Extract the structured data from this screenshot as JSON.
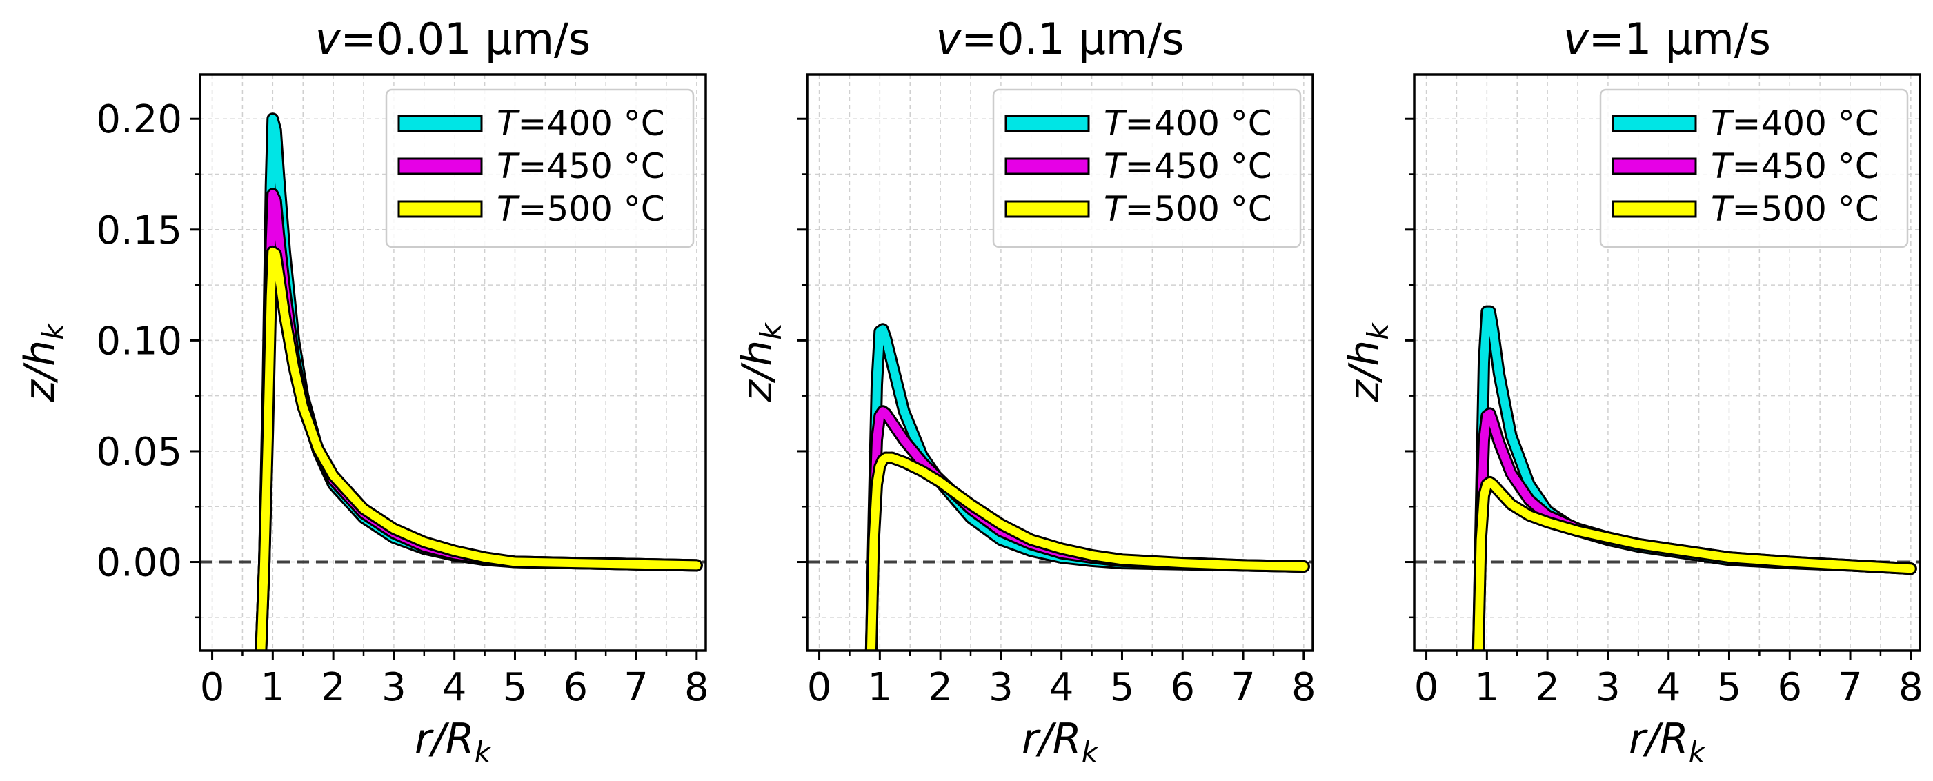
{
  "figure": {
    "xlabel": "r/R",
    "xlabel_sub": "k",
    "ylabel": "z/h",
    "ylabel_sub": "k",
    "title_prefix": "v",
    "colors": {
      "T400": "#00e5e5",
      "T450": "#e600e6",
      "T500": "#ffff00",
      "outline": "#000000",
      "zero_line": "#404040",
      "grid": "#d0d0d0"
    }
  },
  "chart_data": [
    {
      "type": "line",
      "title": "v=0.01 µm/s",
      "title_value": "=0.01 µm/s",
      "xlabel": "r/Rk",
      "ylabel": "z/hk",
      "xlim": [
        -0.2,
        8.15
      ],
      "ylim": [
        -0.04,
        0.22
      ],
      "xticks": [
        "0",
        "1",
        "2",
        "3",
        "4",
        "5",
        "6",
        "7",
        "8"
      ],
      "yticks": [
        "0.20",
        "0.15",
        "0.10",
        "0.05",
        "0.00"
      ],
      "yticks_values": [
        0.2,
        0.15,
        0.1,
        0.05,
        0.0
      ],
      "show_ytick_labels": true,
      "grid": true,
      "legend": "top-right",
      "reference_line": {
        "y": 0.0,
        "style": "dashed"
      },
      "series": [
        {
          "name": "T=400 °C",
          "legend_var": "T",
          "legend_value": "=400 °C",
          "color": "#00e5e5",
          "x": [
            0.78,
            0.86,
            0.92,
            0.97,
            1.0,
            1.05,
            1.1,
            1.2,
            1.35,
            1.5,
            1.75,
            2.0,
            2.5,
            3.0,
            3.5,
            4.0,
            4.5,
            5.0,
            6.0,
            7.0,
            8.0
          ],
          "y": [
            -0.06,
            0.0,
            0.08,
            0.17,
            0.2,
            0.195,
            0.175,
            0.14,
            0.1,
            0.075,
            0.05,
            0.035,
            0.02,
            0.011,
            0.006,
            0.003,
            0.001,
            0.0,
            -0.0005,
            -0.001,
            -0.0015
          ]
        },
        {
          "name": "T=450 °C",
          "legend_var": "T",
          "legend_value": "=450 °C",
          "color": "#e600e6",
          "x": [
            0.78,
            0.86,
            0.92,
            0.97,
            1.0,
            1.05,
            1.1,
            1.2,
            1.35,
            1.5,
            1.75,
            2.0,
            2.5,
            3.0,
            3.5,
            4.0,
            4.5,
            5.0,
            6.0,
            7.0,
            8.0
          ],
          "y": [
            -0.06,
            0.0,
            0.07,
            0.145,
            0.166,
            0.163,
            0.148,
            0.123,
            0.092,
            0.072,
            0.05,
            0.037,
            0.022,
            0.013,
            0.007,
            0.0035,
            0.0015,
            0.0,
            -0.0005,
            -0.001,
            -0.0015
          ]
        },
        {
          "name": "T=500 °C",
          "legend_var": "T",
          "legend_value": "=500 °C",
          "color": "#ffff00",
          "x": [
            0.78,
            0.86,
            0.92,
            0.97,
            1.0,
            1.05,
            1.1,
            1.2,
            1.35,
            1.5,
            1.75,
            2.0,
            2.5,
            3.0,
            3.5,
            4.0,
            4.5,
            5.0,
            6.0,
            7.0,
            8.0
          ],
          "y": [
            -0.06,
            0.0,
            0.06,
            0.12,
            0.14,
            0.139,
            0.13,
            0.111,
            0.088,
            0.07,
            0.051,
            0.039,
            0.024,
            0.015,
            0.009,
            0.005,
            0.002,
            0.0,
            -0.0005,
            -0.001,
            -0.0015
          ]
        }
      ]
    },
    {
      "type": "line",
      "title": "v=0.1 µm/s",
      "title_value": "=0.1 µm/s",
      "xlabel": "r/Rk",
      "ylabel": "z/hk",
      "xlim": [
        -0.2,
        8.15
      ],
      "ylim": [
        -0.04,
        0.22
      ],
      "xticks": [
        "0",
        "1",
        "2",
        "3",
        "4",
        "5",
        "6",
        "7",
        "8"
      ],
      "yticks": [],
      "yticks_values": [
        0.2,
        0.15,
        0.1,
        0.05,
        0.0
      ],
      "show_ytick_labels": false,
      "grid": true,
      "legend": "top-right",
      "reference_line": {
        "y": 0.0,
        "style": "dashed"
      },
      "series": [
        {
          "name": "T=400 °C",
          "legend_var": "T",
          "legend_value": "=400 °C",
          "color": "#00e5e5",
          "x": [
            0.85,
            0.9,
            0.95,
            1.0,
            1.05,
            1.1,
            1.2,
            1.4,
            1.7,
            2.0,
            2.5,
            3.0,
            3.5,
            4.0,
            4.5,
            5.0,
            6.0,
            7.0,
            8.0
          ],
          "y": [
            -0.05,
            0.02,
            0.08,
            0.104,
            0.105,
            0.101,
            0.09,
            0.068,
            0.048,
            0.036,
            0.02,
            0.01,
            0.005,
            0.002,
            0.0005,
            -0.0005,
            -0.001,
            -0.0015,
            -0.002
          ]
        },
        {
          "name": "T=450 °C",
          "legend_var": "T",
          "legend_value": "=450 °C",
          "color": "#e600e6",
          "x": [
            0.85,
            0.9,
            0.95,
            1.0,
            1.05,
            1.1,
            1.2,
            1.4,
            1.7,
            2.0,
            2.5,
            3.0,
            3.5,
            4.0,
            4.5,
            5.0,
            6.0,
            7.0,
            8.0
          ],
          "y": [
            -0.05,
            0.015,
            0.055,
            0.066,
            0.068,
            0.067,
            0.063,
            0.055,
            0.045,
            0.037,
            0.024,
            0.014,
            0.008,
            0.004,
            0.002,
            0.0005,
            -0.0005,
            -0.0015,
            -0.002
          ]
        },
        {
          "name": "T=500 °C",
          "legend_var": "T",
          "legend_value": "=500 °C",
          "color": "#ffff00",
          "x": [
            0.85,
            0.9,
            0.95,
            1.0,
            1.05,
            1.1,
            1.2,
            1.4,
            1.7,
            2.0,
            2.5,
            3.0,
            3.5,
            4.0,
            4.5,
            5.0,
            6.0,
            7.0,
            8.0
          ],
          "y": [
            -0.05,
            0.01,
            0.035,
            0.043,
            0.046,
            0.047,
            0.047,
            0.045,
            0.041,
            0.036,
            0.026,
            0.017,
            0.01,
            0.006,
            0.003,
            0.001,
            -0.0005,
            -0.0015,
            -0.002
          ]
        }
      ]
    },
    {
      "type": "line",
      "title": "v=1 µm/s",
      "title_value": "=1 µm/s",
      "xlabel": "r/Rk",
      "ylabel": "z/hk",
      "xlim": [
        -0.2,
        8.15
      ],
      "ylim": [
        -0.04,
        0.22
      ],
      "xticks": [
        "0",
        "1",
        "2",
        "3",
        "4",
        "5",
        "6",
        "7",
        "8"
      ],
      "yticks": [],
      "yticks_values": [
        0.2,
        0.15,
        0.1,
        0.05,
        0.0
      ],
      "show_ytick_labels": false,
      "grid": true,
      "legend": "top-right",
      "reference_line": {
        "y": 0.0,
        "style": "dashed"
      },
      "series": [
        {
          "name": "T=400 °C",
          "legend_var": "T",
          "legend_value": "=400 °C",
          "color": "#00e5e5",
          "x": [
            0.85,
            0.9,
            0.95,
            1.0,
            1.05,
            1.1,
            1.2,
            1.4,
            1.7,
            2.0,
            2.5,
            3.0,
            3.5,
            4.0,
            4.5,
            5.0,
            6.0,
            7.0,
            8.0
          ],
          "y": [
            -0.05,
            0.02,
            0.09,
            0.113,
            0.113,
            0.105,
            0.085,
            0.057,
            0.035,
            0.023,
            0.014,
            0.01,
            0.007,
            0.005,
            0.003,
            0.001,
            -0.0005,
            -0.0015,
            -0.003
          ]
        },
        {
          "name": "T=450 °C",
          "legend_var": "T",
          "legend_value": "=450 °C",
          "color": "#e600e6",
          "x": [
            0.85,
            0.9,
            0.95,
            1.0,
            1.05,
            1.1,
            1.2,
            1.4,
            1.7,
            2.0,
            2.5,
            3.0,
            3.5,
            4.0,
            4.5,
            5.0,
            6.0,
            7.0,
            8.0
          ],
          "y": [
            -0.05,
            0.015,
            0.055,
            0.066,
            0.067,
            0.063,
            0.054,
            0.04,
            0.028,
            0.021,
            0.015,
            0.011,
            0.008,
            0.006,
            0.004,
            0.002,
            0.0,
            -0.0015,
            -0.003
          ]
        },
        {
          "name": "T=500 °C",
          "legend_var": "T",
          "legend_value": "=500 °C",
          "color": "#ffff00",
          "x": [
            0.85,
            0.9,
            0.95,
            1.0,
            1.05,
            1.1,
            1.2,
            1.4,
            1.7,
            2.0,
            2.5,
            3.0,
            3.5,
            4.0,
            4.5,
            5.0,
            6.0,
            7.0,
            8.0
          ],
          "y": [
            -0.05,
            0.01,
            0.03,
            0.035,
            0.036,
            0.035,
            0.032,
            0.026,
            0.021,
            0.018,
            0.014,
            0.011,
            0.008,
            0.006,
            0.004,
            0.002,
            0.0,
            -0.0015,
            -0.003
          ]
        }
      ]
    }
  ]
}
